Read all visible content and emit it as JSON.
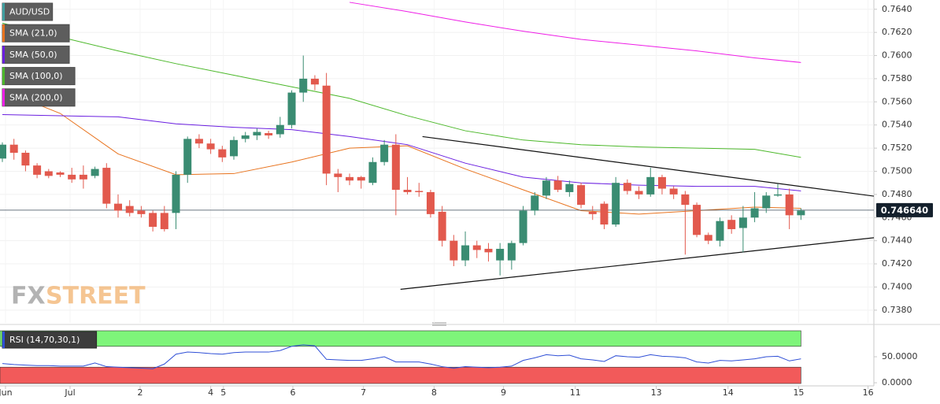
{
  "chart_data": [
    {
      "type": "candlestick",
      "title": "AUD/USD",
      "x": [
        0,
        1,
        2,
        3,
        4,
        5,
        6,
        7,
        8,
        9,
        10,
        11,
        12,
        13,
        14,
        15,
        16,
        17,
        18,
        19,
        20,
        21,
        22,
        23,
        24,
        25,
        26,
        27,
        28,
        29,
        30,
        31,
        32,
        33,
        34,
        35,
        36,
        37,
        38,
        39,
        40,
        41,
        42,
        43,
        44,
        45,
        46,
        47,
        48,
        49,
        50,
        51,
        52,
        53,
        54,
        55,
        56,
        57,
        58,
        59,
        60,
        61,
        62,
        63,
        64,
        65,
        66,
        67,
        68,
        69
      ],
      "open": [
        0.7511,
        0.7523,
        0.7516,
        0.7505,
        0.75,
        0.7499,
        0.7497,
        0.7497,
        0.7496,
        0.7503,
        0.7472,
        0.747,
        0.7466,
        0.7464,
        0.7464,
        0.7464,
        0.7497,
        0.7528,
        0.7524,
        0.7519,
        0.7513,
        0.7528,
        0.7531,
        0.7533,
        0.7532,
        0.754,
        0.7568,
        0.758,
        0.7574,
        0.7498,
        0.7495,
        0.7495,
        0.749,
        0.7508,
        0.7523,
        0.7484,
        0.7483,
        0.7482,
        0.7465,
        0.744,
        0.7423,
        0.7436,
        0.7433,
        0.7423,
        0.7423,
        0.7438,
        0.7466,
        0.7479,
        0.7492,
        0.7482,
        0.7488,
        0.7465,
        0.7472,
        0.7454,
        0.749,
        0.7483,
        0.748,
        0.7495,
        0.7485,
        0.748,
        0.7471,
        0.7445,
        0.744,
        0.7458,
        0.7451,
        0.746,
        0.7468,
        0.7479,
        0.748,
        0.7462
      ],
      "high": [
        0.7525,
        0.7528,
        0.7518,
        0.7507,
        0.7502,
        0.75,
        0.7503,
        0.7505,
        0.7504,
        0.7507,
        0.748,
        0.7475,
        0.747,
        0.7466,
        0.747,
        0.75,
        0.753,
        0.7532,
        0.7528,
        0.7522,
        0.753,
        0.7534,
        0.7537,
        0.7535,
        0.7547,
        0.757,
        0.76,
        0.7583,
        0.7585,
        0.7502,
        0.7498,
        0.7496,
        0.7512,
        0.7527,
        0.7532,
        0.7495,
        0.749,
        0.7484,
        0.747,
        0.7445,
        0.7448,
        0.744,
        0.7438,
        0.7438,
        0.744,
        0.747,
        0.7482,
        0.7495,
        0.7496,
        0.7492,
        0.749,
        0.747,
        0.7474,
        0.7495,
        0.7493,
        0.7487,
        0.7503,
        0.7497,
        0.7487,
        0.7483,
        0.7473,
        0.7447,
        0.746,
        0.7462,
        0.747,
        0.7482,
        0.7482,
        0.7489,
        0.7485,
        0.7468
      ],
      "low": [
        0.7508,
        0.751,
        0.75,
        0.7494,
        0.7494,
        0.7495,
        0.749,
        0.7485,
        0.7494,
        0.7468,
        0.746,
        0.7461,
        0.746,
        0.7448,
        0.7448,
        0.745,
        0.749,
        0.752,
        0.7515,
        0.7508,
        0.751,
        0.7525,
        0.7527,
        0.7528,
        0.7529,
        0.7537,
        0.756,
        0.757,
        0.7488,
        0.7482,
        0.7488,
        0.7485,
        0.7488,
        0.7505,
        0.7462,
        0.748,
        0.7478,
        0.746,
        0.7435,
        0.7418,
        0.7418,
        0.7425,
        0.7422,
        0.741,
        0.7415,
        0.7436,
        0.7462,
        0.7476,
        0.7482,
        0.7478,
        0.7468,
        0.7458,
        0.745,
        0.7452,
        0.748,
        0.7476,
        0.7478,
        0.748,
        0.7476,
        0.7428,
        0.7443,
        0.7437,
        0.7435,
        0.7446,
        0.743,
        0.7456,
        0.7464,
        0.7478,
        0.745,
        0.7458
      ],
      "close": [
        0.7523,
        0.7516,
        0.7505,
        0.7497,
        0.7496,
        0.7497,
        0.7493,
        0.7493,
        0.7502,
        0.7472,
        0.7466,
        0.7464,
        0.7463,
        0.7452,
        0.745,
        0.7497,
        0.7528,
        0.7524,
        0.7519,
        0.7512,
        0.7527,
        0.7531,
        0.7534,
        0.7531,
        0.754,
        0.7568,
        0.758,
        0.7575,
        0.7498,
        0.7495,
        0.7492,
        0.7492,
        0.7508,
        0.7523,
        0.7484,
        0.7482,
        0.7482,
        0.7463,
        0.744,
        0.7423,
        0.7436,
        0.7432,
        0.743,
        0.7433,
        0.7438,
        0.7466,
        0.7479,
        0.7492,
        0.7484,
        0.7489,
        0.7471,
        0.7463,
        0.7454,
        0.749,
        0.7483,
        0.748,
        0.7495,
        0.7485,
        0.748,
        0.7471,
        0.7445,
        0.744,
        0.7457,
        0.745,
        0.746,
        0.7468,
        0.7479,
        0.748,
        0.7462,
        0.7466
      ],
      "up_color": "#3a8c72",
      "down_color": "#e2594d",
      "series": [
        {
          "name": "SMA (21,0)",
          "color": "#e8731e",
          "x": [
            0,
            5,
            10,
            15,
            20,
            25,
            30,
            35,
            40,
            45,
            50,
            55,
            60,
            65,
            69
          ],
          "values": [
            0.757,
            0.755,
            0.7515,
            0.7497,
            0.7498,
            0.7508,
            0.752,
            0.7522,
            0.7502,
            0.7484,
            0.7466,
            0.7463,
            0.7466,
            0.7469,
            0.7468
          ]
        },
        {
          "name": "SMA (50,0)",
          "color": "#6a1ee0",
          "x": [
            0,
            5,
            10,
            15,
            20,
            25,
            30,
            35,
            40,
            45,
            50,
            55,
            60,
            65,
            69
          ],
          "values": [
            0.7549,
            0.7548,
            0.7547,
            0.7541,
            0.7538,
            0.7536,
            0.753,
            0.7523,
            0.7507,
            0.7495,
            0.749,
            0.7488,
            0.7487,
            0.7487,
            0.7483
          ]
        },
        {
          "name": "SMA (100,0)",
          "color": "#4cb82a",
          "x": [
            0,
            5,
            10,
            15,
            20,
            25,
            30,
            35,
            40,
            45,
            50,
            55,
            60,
            65,
            69
          ],
          "values": [
            0.7628,
            0.7616,
            0.7604,
            0.7593,
            0.7583,
            0.7573,
            0.7563,
            0.7548,
            0.7535,
            0.7527,
            0.7523,
            0.7521,
            0.752,
            0.7519,
            0.7512
          ]
        },
        {
          "name": "SMA (200,0)",
          "color": "#ee1ee6",
          "x": [
            30,
            35,
            40,
            45,
            50,
            55,
            60,
            65,
            69
          ],
          "values": [
            0.7646,
            0.7638,
            0.7629,
            0.7621,
            0.7614,
            0.7609,
            0.7604,
            0.7598,
            0.7594
          ]
        }
      ],
      "trendlines": [
        {
          "x": [
            36.3,
            75.7
          ],
          "y": [
            0.753,
            0.7478
          ]
        },
        {
          "x": [
            34.4,
            75.7
          ],
          "y": [
            0.7398,
            0.7443
          ]
        }
      ],
      "last_price": {
        "value": 0.74664,
        "label": "0.746640"
      },
      "watermark": [
        "FX",
        "STREET"
      ],
      "xlim": [
        -0.204,
        75.3
      ],
      "xticks": [
        {
          "value": 0.27,
          "label": "Jun"
        },
        {
          "value": 5.85,
          "label": "Jul"
        },
        {
          "value": 11.9,
          "label": "2"
        },
        {
          "value": 18.0,
          "label": "4"
        },
        {
          "value": 19.1,
          "label": "5"
        },
        {
          "value": 25.1,
          "label": "6"
        },
        {
          "value": 31.2,
          "label": "7"
        },
        {
          "value": 37.3,
          "label": "8"
        },
        {
          "value": 43.3,
          "label": "9"
        },
        {
          "value": 49.5,
          "label": "11"
        },
        {
          "value": 56.5,
          "label": "13"
        },
        {
          "value": 62.7,
          "label": "14"
        },
        {
          "value": 68.8,
          "label": "15"
        },
        {
          "value": 74.8,
          "label": "16"
        }
      ],
      "ylim": [
        0.7369,
        0.7648
      ],
      "yticks": [
        {
          "value": 0.738,
          "label": "0.7380"
        },
        {
          "value": 0.74,
          "label": "0.7400"
        },
        {
          "value": 0.742,
          "label": "0.7420"
        },
        {
          "value": 0.744,
          "label": "0.7440"
        },
        {
          "value": 0.746,
          "label": "0.7460"
        },
        {
          "value": 0.748,
          "label": "0.7480"
        },
        {
          "value": 0.75,
          "label": "0.7500"
        },
        {
          "value": 0.752,
          "label": "0.7520"
        },
        {
          "value": 0.754,
          "label": "0.7540"
        },
        {
          "value": 0.756,
          "label": "0.7560"
        },
        {
          "value": 0.758,
          "label": "0.7580"
        },
        {
          "value": 0.76,
          "label": "0.7600"
        },
        {
          "value": 0.762,
          "label": "0.7620"
        },
        {
          "value": 0.764,
          "label": "0.7640"
        }
      ],
      "grid": true
    },
    {
      "type": "line",
      "name": "RSI (14,70,30,1)",
      "color": "#2f4fd6",
      "values": [
        37,
        35,
        34,
        33,
        33,
        32,
        32,
        32,
        38,
        31,
        30,
        29,
        28,
        27,
        36,
        55,
        59,
        58,
        56,
        55,
        58,
        59,
        59,
        59,
        62,
        70,
        73,
        71,
        45,
        44,
        43,
        43,
        46,
        50,
        40,
        40,
        40,
        36,
        31,
        28,
        31,
        30,
        29,
        30,
        32,
        43,
        48,
        54,
        52,
        53,
        46,
        44,
        41,
        52,
        50,
        49,
        54,
        51,
        50,
        48,
        40,
        38,
        43,
        42,
        44,
        46,
        50,
        51,
        42,
        46
      ],
      "overbought": 70,
      "oversold": 30,
      "overbought_color": "#7ef57a",
      "oversold_color": "#f25a5a",
      "ylim": [
        -6,
        103
      ],
      "yticks": [
        {
          "value": 0,
          "label": "0.0000"
        },
        {
          "value": 50,
          "label": "50.0000"
        }
      ]
    }
  ]
}
